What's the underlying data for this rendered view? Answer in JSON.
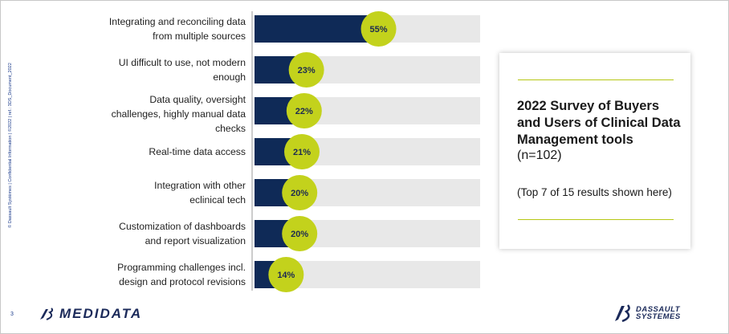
{
  "side_text": "© Dassault Systèmes | Confidential Information | ©2022 | ref.: 3DS_Document_2022",
  "page_number": "3",
  "chart_data": {
    "type": "bar",
    "orientation": "horizontal",
    "categories": [
      "Integrating and reconciling data from multiple sources",
      "UI difficult to use, not modern enough",
      "Data quality, oversight challenges, highly manual data checks",
      "Real-time data access",
      "Integration with other eclinical tech",
      "Customization of dashboards and report visualization",
      "Programming challenges incl. design and protocol revisions"
    ],
    "category_lines": [
      [
        "Integrating and reconciling data",
        "from multiple sources"
      ],
      [
        "UI difficult to use, not modern",
        "enough"
      ],
      [
        "Data quality, oversight",
        "challenges, highly manual data",
        "checks"
      ],
      [
        "Real-time data access"
      ],
      [
        "Integration with other",
        "eclinical tech"
      ],
      [
        "Customization of dashboards",
        "and report visualization"
      ],
      [
        "Programming challenges incl.",
        "design and protocol revisions"
      ]
    ],
    "values": [
      55,
      23,
      22,
      21,
      20,
      20,
      14
    ],
    "value_labels": [
      "55%",
      "23%",
      "22%",
      "21%",
      "20%",
      "20%",
      "14%"
    ],
    "background_max": 100,
    "colors": {
      "bar": "#0f2a57",
      "track": "#e8e8e8",
      "marker": "#c3d21c",
      "axis": "#9a9a9a"
    }
  },
  "panel": {
    "title": "2022 Survey of Buyers and Users of Clinical Data Management tools",
    "n": "(n=102)",
    "note": "(Top 7 of 15 results shown here)",
    "accent": "#b6c714"
  },
  "logos": {
    "left_word": "MEDIDATA",
    "right_line1": "DASSAULT",
    "right_line2": "SYSTEMES"
  }
}
